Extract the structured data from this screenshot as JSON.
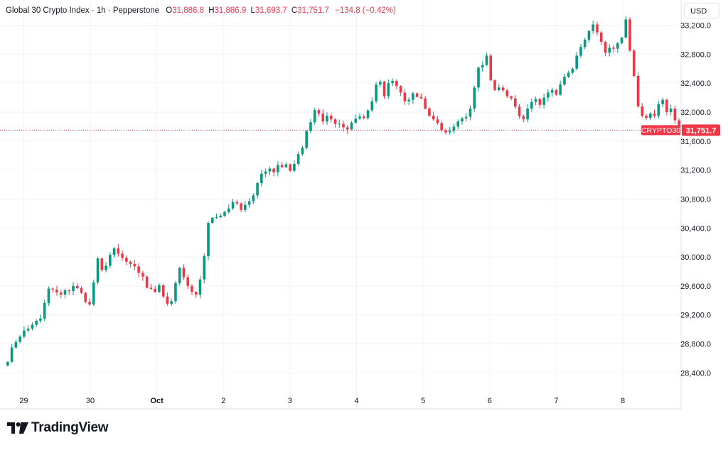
{
  "legend": {
    "symbol_name": "Global 30 Crypto Index · 1h · Pepperstone",
    "o_label": "O",
    "o_value": "31,886.8",
    "h_label": "H",
    "h_value": "31,886.9",
    "l_label": "L",
    "l_value": "31,693.7",
    "c_label": "C",
    "c_value": "31,751.7",
    "change": "−134.8 (−0.42%)"
  },
  "currency": "USD",
  "brand": {
    "name": "TradingView",
    "icon": "tradingview-logo-icon"
  },
  "colors": {
    "up": "#089981",
    "down": "#f23645",
    "grid": "#f0f3fa",
    "text": "#131722"
  },
  "chart_data": {
    "type": "candlestick",
    "timeframe": "1h",
    "symbol": "CRYPTO30",
    "last_price": 31751.7,
    "last_price_label": "31,751.7",
    "y_ticks": [
      28400,
      28800,
      29200,
      29600,
      30000,
      30400,
      30800,
      31200,
      31600,
      32000,
      32400,
      32800,
      33200
    ],
    "y_tick_labels": [
      "28,400.0",
      "28,800.0",
      "29,200.0",
      "29,600.0",
      "30,000.0",
      "30,400.0",
      "30,800.0",
      "31,200.0",
      "31,600.0",
      "32,000.0",
      "32,400.0",
      "32,800.0",
      "33,200.0"
    ],
    "ylim": [
      28100,
      33450
    ],
    "x_ticks": [
      {
        "label": "29",
        "hour": 6
      },
      {
        "label": "30",
        "hour": 30
      },
      {
        "label": "Oct",
        "hour": 54
      },
      {
        "label": "2",
        "hour": 78
      },
      {
        "label": "3",
        "hour": 102
      },
      {
        "label": "4",
        "hour": 126
      },
      {
        "label": "5",
        "hour": 150
      },
      {
        "label": "6",
        "hour": 174
      },
      {
        "label": "7",
        "hour": 198
      },
      {
        "label": "8",
        "hour": 222
      }
    ],
    "xlim": [
      -0.5,
      243
    ],
    "grid": true,
    "series": [
      {
        "name": "Global 30 Crypto Index",
        "values": [
          28552,
          28750,
          28827,
          28900,
          28986,
          29012,
          29065,
          29120,
          29150,
          29365,
          29563,
          29550,
          29510,
          29480,
          29540,
          29530,
          29600,
          29570,
          29505,
          29380,
          29345,
          29650,
          29980,
          29820,
          29880,
          30030,
          30120,
          30045,
          29990,
          29935,
          29905,
          29870,
          29780,
          29730,
          29575,
          29560,
          29520,
          29610,
          29455,
          29355,
          29390,
          29640,
          29850,
          29720,
          29600,
          29520,
          29480,
          29690,
          30012,
          30470,
          30540,
          30550,
          30570,
          30620,
          30670,
          30760,
          30740,
          30650,
          30720,
          30770,
          30850,
          31020,
          31150,
          31180,
          31220,
          31170,
          31270,
          31240,
          31280,
          31190,
          31285,
          31420,
          31510,
          31740,
          31860,
          32028,
          31980,
          31870,
          31952,
          31900,
          31836,
          31840,
          31790,
          31760,
          31855,
          31910,
          31940,
          31918,
          32025,
          32150,
          32380,
          32420,
          32220,
          32400,
          32430,
          32360,
          32270,
          32150,
          32170,
          32260,
          32210,
          32190,
          32050,
          31950,
          31900,
          31850,
          31750,
          31720,
          31740,
          31800,
          31870,
          31915,
          31935,
          32050,
          32340,
          32615,
          32650,
          32780,
          32440,
          32305,
          32340,
          32300,
          32220,
          32190,
          32075,
          31945,
          31900,
          32050,
          32140,
          32180,
          32100,
          32200,
          32270,
          32305,
          32240,
          32380,
          32490,
          32544,
          32600,
          32780,
          32900,
          33000,
          33120,
          33210,
          33100,
          32970,
          32820,
          32890,
          32875,
          32950,
          33030,
          33280,
          32850,
          32500,
          32080,
          31950,
          31920,
          31980,
          31950,
          32110,
          32170,
          32000,
          32050,
          31886.8,
          31751.7
        ],
        "open_first": 28500
      }
    ]
  }
}
